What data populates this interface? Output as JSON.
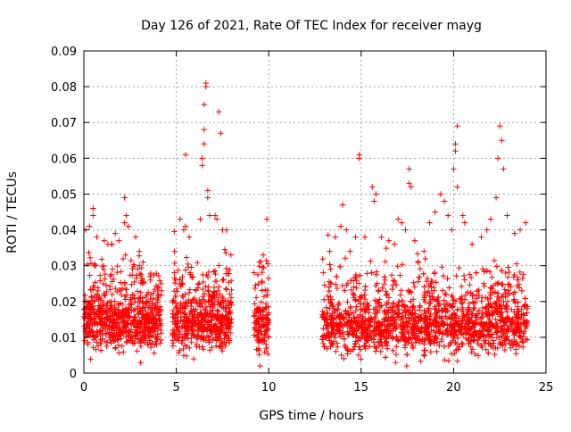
{
  "chart_data": {
    "type": "scatter",
    "title": "Day 126 of 2021, Rate Of TEC Index for receiver mayg",
    "xlabel": "GPS time / hours",
    "ylabel": "ROTI / TECUs",
    "xlim": [
      0,
      25
    ],
    "ylim": [
      0,
      0.09
    ],
    "xticks": [
      0,
      5,
      10,
      15,
      20,
      25
    ],
    "yticks": [
      0,
      0.01,
      0.02,
      0.03,
      0.04,
      0.05,
      0.06,
      0.07,
      0.08,
      0.09
    ],
    "xtick_labels": [
      "0",
      "5",
      "10",
      "15",
      "20",
      "25"
    ],
    "ytick_labels": [
      "0",
      "0.01",
      "0.02",
      "0.03",
      "0.04",
      "0.05",
      "0.06",
      "0.07",
      "0.08",
      "0.09"
    ],
    "grid": true,
    "marker": "+",
    "color": "#ff0000",
    "data_segments": [
      {
        "start": 0.0,
        "end": 4.2,
        "base_center": 0.014,
        "max": 0.049
      },
      {
        "start": 4.8,
        "end": 8.0,
        "base_center": 0.014,
        "max": 0.081
      },
      {
        "start": 9.2,
        "end": 10.0,
        "base_center": 0.013,
        "max": 0.043
      },
      {
        "start": 12.9,
        "end": 24.0,
        "base_center": 0.013,
        "max": 0.069
      }
    ],
    "series": [
      {
        "name": "ROTI",
        "points": [
          [
            0.1,
            0.04
          ],
          [
            0.3,
            0.041
          ],
          [
            0.5,
            0.046
          ],
          [
            0.5,
            0.044
          ],
          [
            0.7,
            0.038
          ],
          [
            1.1,
            0.037
          ],
          [
            1.3,
            0.036
          ],
          [
            1.5,
            0.036
          ],
          [
            1.7,
            0.039
          ],
          [
            1.9,
            0.037
          ],
          [
            2.2,
            0.049
          ],
          [
            2.3,
            0.044
          ],
          [
            2.2,
            0.042
          ],
          [
            2.4,
            0.041
          ],
          [
            2.8,
            0.038
          ],
          [
            3.0,
            0.034
          ],
          [
            3.2,
            0.031
          ],
          [
            3.6,
            0.026
          ],
          [
            4.0,
            0.024
          ],
          [
            4.2,
            0.023
          ],
          [
            4.9,
            0.034
          ],
          [
            5.2,
            0.043
          ],
          [
            5.4,
            0.04
          ],
          [
            5.5,
            0.041
          ],
          [
            5.5,
            0.061
          ],
          [
            5.7,
            0.038
          ],
          [
            6.3,
            0.043
          ],
          [
            6.4,
            0.058
          ],
          [
            6.4,
            0.06
          ],
          [
            6.5,
            0.064
          ],
          [
            6.5,
            0.068
          ],
          [
            6.5,
            0.075
          ],
          [
            6.6,
            0.08
          ],
          [
            6.6,
            0.081
          ],
          [
            6.7,
            0.051
          ],
          [
            6.7,
            0.049
          ],
          [
            6.8,
            0.044
          ],
          [
            7.1,
            0.044
          ],
          [
            7.2,
            0.043
          ],
          [
            7.3,
            0.073
          ],
          [
            7.4,
            0.067
          ],
          [
            7.5,
            0.04
          ],
          [
            9.5,
            0.031
          ],
          [
            9.7,
            0.033
          ],
          [
            9.9,
            0.043
          ],
          [
            13.3,
            0.034
          ],
          [
            13.6,
            0.038
          ],
          [
            13.9,
            0.041
          ],
          [
            14.0,
            0.047
          ],
          [
            14.2,
            0.04
          ],
          [
            14.4,
            0.034
          ],
          [
            14.7,
            0.038
          ],
          [
            14.9,
            0.061
          ],
          [
            14.9,
            0.06
          ],
          [
            15.2,
            0.038
          ],
          [
            15.6,
            0.052
          ],
          [
            15.7,
            0.048
          ],
          [
            15.8,
            0.05
          ],
          [
            16.1,
            0.038
          ],
          [
            16.5,
            0.037
          ],
          [
            16.8,
            0.036
          ],
          [
            17.0,
            0.043
          ],
          [
            17.2,
            0.042
          ],
          [
            17.4,
            0.04
          ],
          [
            17.6,
            0.057
          ],
          [
            17.6,
            0.053
          ],
          [
            17.7,
            0.052
          ],
          [
            17.9,
            0.037
          ],
          [
            18.4,
            0.034
          ],
          [
            18.7,
            0.042
          ],
          [
            19.0,
            0.045
          ],
          [
            19.3,
            0.05
          ],
          [
            19.5,
            0.048
          ],
          [
            19.7,
            0.044
          ],
          [
            19.9,
            0.04
          ],
          [
            20.0,
            0.057
          ],
          [
            20.1,
            0.062
          ],
          [
            20.1,
            0.064
          ],
          [
            20.2,
            0.069
          ],
          [
            20.2,
            0.052
          ],
          [
            20.5,
            0.044
          ],
          [
            20.6,
            0.042
          ],
          [
            21.0,
            0.036
          ],
          [
            21.5,
            0.038
          ],
          [
            21.8,
            0.04
          ],
          [
            22.0,
            0.043
          ],
          [
            22.3,
            0.049
          ],
          [
            22.4,
            0.06
          ],
          [
            22.5,
            0.069
          ],
          [
            22.6,
            0.065
          ],
          [
            22.7,
            0.057
          ],
          [
            22.9,
            0.044
          ],
          [
            23.3,
            0.039
          ],
          [
            23.6,
            0.04
          ],
          [
            23.9,
            0.042
          ]
        ]
      }
    ]
  }
}
